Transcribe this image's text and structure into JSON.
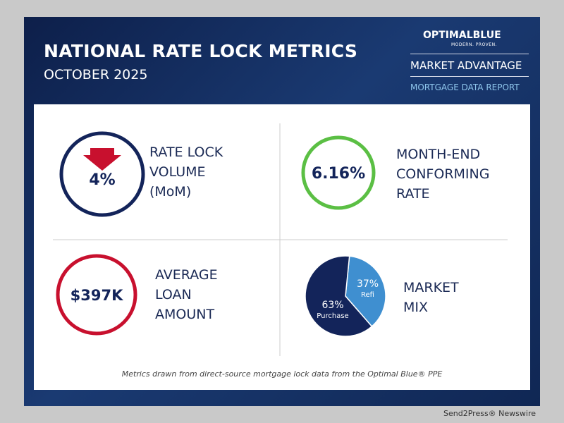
{
  "header": {
    "title": "NATIONAL RATE LOCK METRICS",
    "subtitle": "OCTOBER 2025"
  },
  "brand": {
    "name": "OPTIMALBLUE",
    "tagline": "MODERN. PROVEN.",
    "line1": "MARKET ADVANTAGE",
    "line2": "MORTGAGE DATA REPORT"
  },
  "metrics": [
    {
      "value": "4%",
      "label": "RATE LOCK VOLUME (MoM)"
    },
    {
      "value": "6.16%",
      "label": "MONTH-END CONFORMING RATE"
    },
    {
      "value": "$397K",
      "label": "AVERAGE LOAN AMOUNT"
    }
  ],
  "chart_data": {
    "type": "pie",
    "title": "MARKET MIX",
    "categories": [
      "Refi",
      "Purchase"
    ],
    "values": [
      37,
      63
    ],
    "value_labels": [
      "37%",
      "63%"
    ],
    "colors": [
      "#3f8fd0",
      "#13245a"
    ]
  },
  "footer": {
    "note": "Metrics drawn from direct-source mortgage lock data from the Optimal Blue® PPE",
    "watermark": "Send2Press® Newswire"
  }
}
